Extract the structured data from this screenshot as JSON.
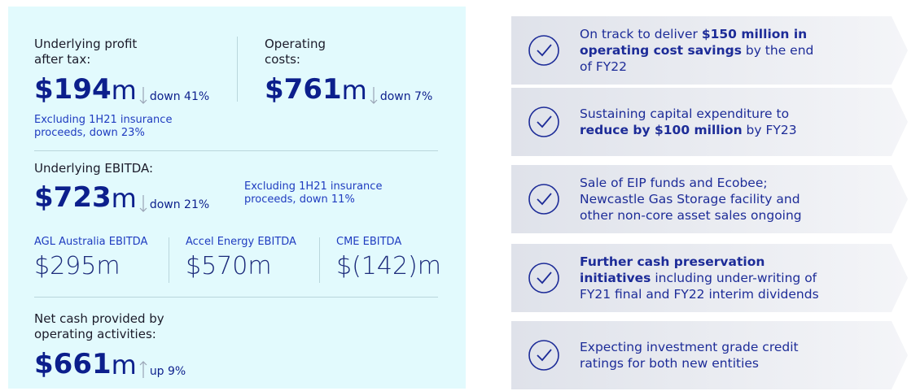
{
  "left": {
    "metrics": [
      {
        "label": [
          "Underlying profit",
          "after tax:"
        ],
        "value": "$194",
        "unit": "m",
        "change": "down 41%",
        "direction": "down",
        "note": [
          "Excluding 1H21 insurance",
          "proceeds, down 23%"
        ]
      },
      {
        "label": [
          "Operating",
          "costs:"
        ],
        "value": "$761",
        "unit": "m",
        "change": "down 7%",
        "direction": "down"
      },
      {
        "label": [
          "Underlying EBITDA:"
        ],
        "value": "$723",
        "unit": "m",
        "change": "down 21%",
        "direction": "down",
        "note": [
          "Excluding 1H21 insurance",
          "proceeds, down 11%"
        ]
      },
      {
        "label": [
          "Net cash provided by",
          "operating activities:"
        ],
        "value": "$661",
        "unit": "m",
        "change": "up 9%",
        "direction": "up"
      }
    ],
    "segments": [
      {
        "label": "AGL Australia EBITDA",
        "value": "$295",
        "unit": "m"
      },
      {
        "label": "Accel Energy EBITDA",
        "value": "$570",
        "unit": "m"
      },
      {
        "label": "CME EBITDA",
        "value": "$(142)",
        "unit": "m"
      }
    ]
  },
  "right": {
    "items": [
      {
        "parts": [
          {
            "text": "On track to deliver "
          },
          {
            "text": "$150 million",
            "bold": true
          },
          {
            "text": " in operating cost savings",
            "bold": true
          },
          {
            "text": " by the end of FY22"
          }
        ]
      },
      {
        "parts": [
          {
            "text": "Sustaining capital expenditure to "
          },
          {
            "text": "reduce by $100 million",
            "bold": true
          },
          {
            "text": " by FY23"
          }
        ]
      },
      {
        "parts": [
          {
            "text": "Sale of EIP funds and Ecobee; Newcastle Gas Storage facility and other non-core asset sales ongoing"
          }
        ]
      },
      {
        "parts": [
          {
            "text": "Further cash preservation initiatives",
            "bold": true
          },
          {
            "text": " including under-writing of FY21 final and FY22 interim dividends"
          }
        ]
      },
      {
        "parts": [
          {
            "text": "Expecting investment grade credit ratings for both new entities"
          }
        ]
      }
    ]
  }
}
